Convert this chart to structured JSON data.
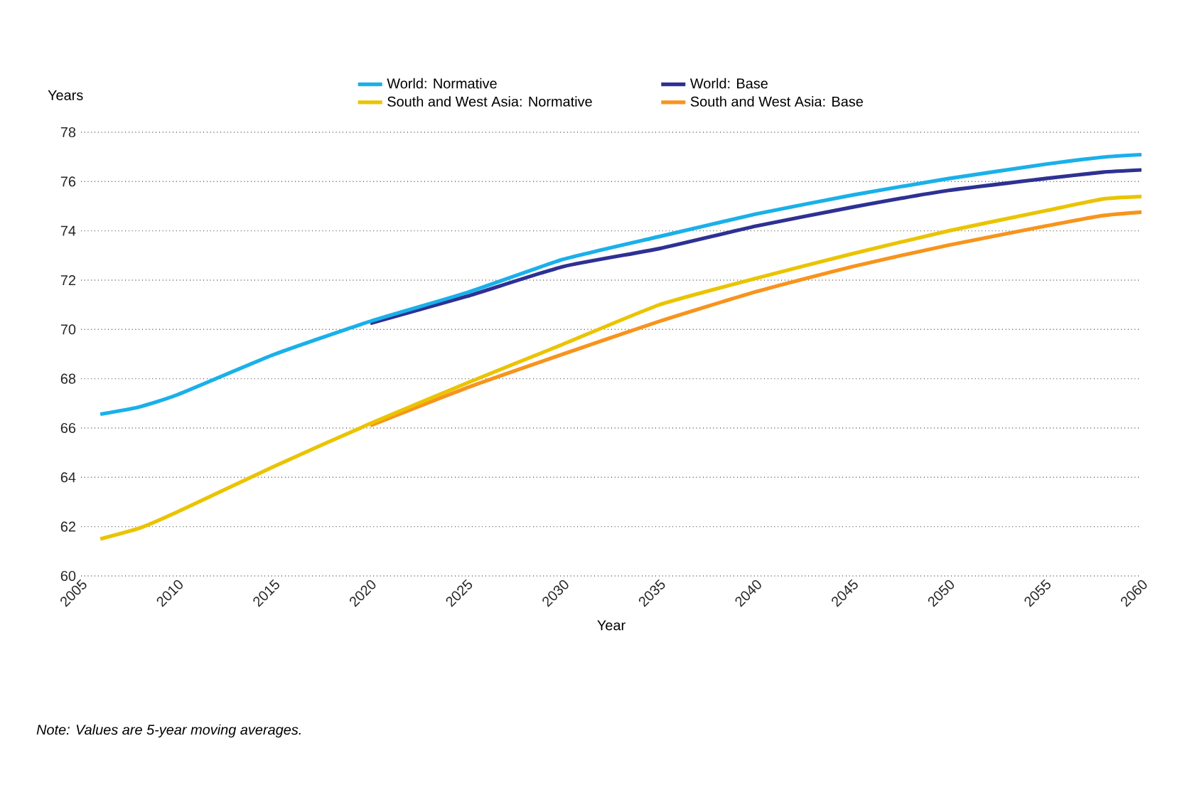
{
  "chart_data": {
    "type": "line",
    "xlabel": "Year",
    "ylabel": "Years",
    "xlim": [
      2005,
      2060
    ],
    "xticks": [
      2005,
      2010,
      2015,
      2020,
      2025,
      2030,
      2035,
      2040,
      2045,
      2050,
      2055,
      2060
    ],
    "ylim": [
      60,
      78
    ],
    "yticks": [
      60,
      62,
      64,
      66,
      68,
      70,
      72,
      74,
      76,
      78
    ],
    "grid": "y",
    "legend": "top",
    "line_style": "solid",
    "x": [
      2006,
      2008,
      2010,
      2015,
      2020,
      2025,
      2030,
      2035,
      2040,
      2045,
      2050,
      2055,
      2058,
      2060
    ],
    "series": [
      {
        "name": "World: Normative",
        "color": "#1ab0ea",
        "values": [
          66.56,
          66.85,
          67.35,
          68.98,
          70.33,
          71.49,
          72.84,
          73.77,
          74.68,
          75.45,
          76.12,
          76.7,
          76.99,
          77.09
        ]
      },
      {
        "name": "World: Base",
        "color": "#2e3192",
        "values": [
          null,
          null,
          null,
          null,
          70.25,
          71.34,
          72.55,
          73.28,
          74.19,
          74.96,
          75.64,
          76.12,
          76.38,
          76.47
        ]
      },
      {
        "name": "South and West Asia: Normative",
        "color": "#eac400",
        "values": [
          61.5,
          61.93,
          62.6,
          64.44,
          66.18,
          67.82,
          69.4,
          71.0,
          72.07,
          73.07,
          74.0,
          74.81,
          75.29,
          75.39
        ]
      },
      {
        "name": "South and West Asia: Base",
        "color": "#f7941d",
        "values": [
          null,
          null,
          null,
          null,
          66.1,
          67.63,
          69.0,
          70.33,
          71.53,
          72.55,
          73.42,
          74.19,
          74.62,
          74.76
        ]
      }
    ],
    "annotations": [
      "Note: Values are 5-year moving averages."
    ]
  }
}
